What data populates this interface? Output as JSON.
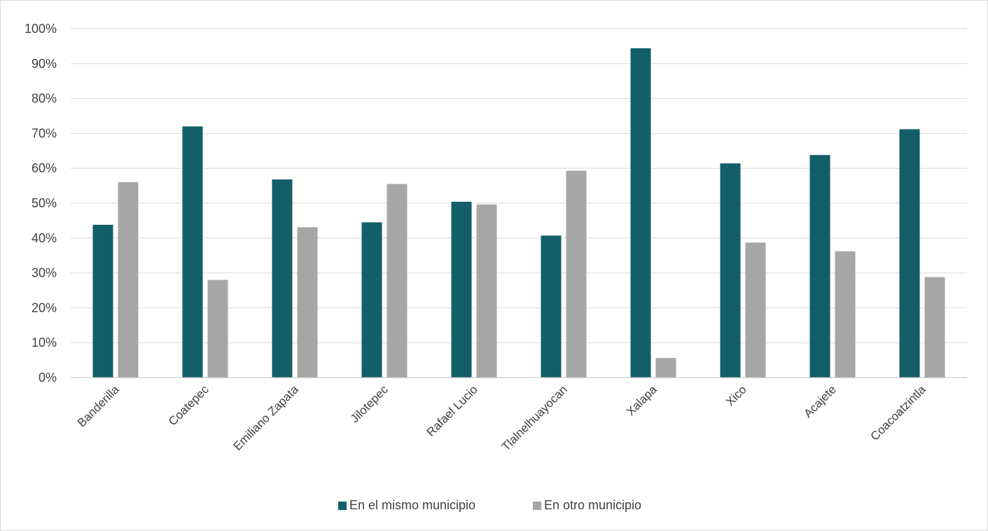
{
  "chart_data": {
    "type": "bar",
    "title": "",
    "xlabel": "",
    "ylabel": "",
    "categories": [
      "Banderilla",
      "Coatepec",
      "Emiliano Zapata",
      "Jilotepec",
      "Rafael Lucio",
      "Tlalnelhuayocan",
      "Xalapa",
      "Xico",
      "Acajete",
      "Coacoatzintla"
    ],
    "series": [
      {
        "name": "En el mismo municipio",
        "color": "#125f69",
        "values": [
          0.438,
          0.72,
          0.568,
          0.445,
          0.504,
          0.407,
          0.944,
          0.614,
          0.638,
          0.712
        ]
      },
      {
        "name": "En otro municipio",
        "color": "#a6a6a6",
        "values": [
          0.56,
          0.28,
          0.431,
          0.555,
          0.496,
          0.593,
          0.056,
          0.387,
          0.362,
          0.288
        ]
      }
    ],
    "ylim": [
      0,
      1
    ],
    "yticks": [
      "0%",
      "10%",
      "20%",
      "30%",
      "40%",
      "50%",
      "60%",
      "70%",
      "80%",
      "90%",
      "100%"
    ],
    "grid": true,
    "legend_position": "bottom"
  }
}
